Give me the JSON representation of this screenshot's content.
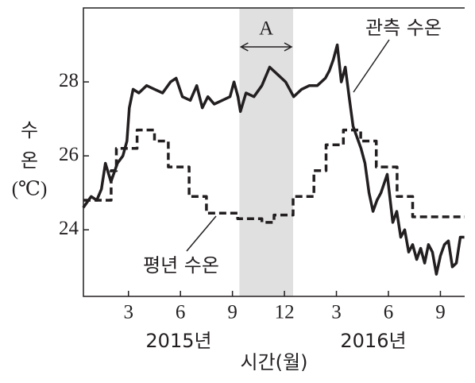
{
  "chart_data": {
    "type": "line",
    "xlabel": "시간(월)",
    "ylabel_lines": [
      "수",
      "온",
      "(℃)"
    ],
    "year_labels": [
      "2015년",
      "2016년"
    ],
    "highlight": {
      "label": "A",
      "x": [
        9.4,
        12.5
      ],
      "color": "#e0e0e0"
    },
    "xlim": [
      0.4,
      22.4
    ],
    "xticks": [
      3,
      6,
      9,
      12,
      {
        "value": 15,
        "label": "3"
      },
      {
        "value": 18,
        "label": "6"
      },
      {
        "value": 21,
        "label": "9"
      }
    ],
    "ylim": [
      22.2,
      30
    ],
    "yticks": [
      24,
      26,
      28
    ],
    "series": [
      {
        "name": "관측 수온",
        "color": "#231f20",
        "linestyle": "solid",
        "x": [
          0.39,
          0.85,
          1.17,
          1.44,
          1.67,
          1.99,
          2.36,
          2.68,
          2.91,
          3.05,
          3.27,
          3.6,
          4.05,
          4.51,
          4.97,
          5.43,
          5.75,
          6.11,
          6.57,
          6.94,
          7.26,
          7.58,
          7.95,
          8.41,
          8.86,
          9.09,
          9.32,
          9.46,
          9.78,
          10.24,
          10.7,
          11.15,
          11.61,
          12.07,
          12.53,
          12.99,
          13.44,
          13.9,
          14.36,
          14.59,
          14.82,
          15.05,
          15.28,
          15.51,
          15.73,
          15.96,
          16.19,
          16.42,
          16.65,
          16.88,
          17.11,
          17.34,
          17.57,
          17.93,
          18.25,
          18.48,
          18.71,
          18.94,
          19.17,
          19.4,
          19.63,
          19.86,
          20.09,
          20.31,
          20.54,
          20.77,
          21.0,
          21.23,
          21.46,
          21.69,
          21.92,
          22.15,
          22.38
        ],
        "values": [
          24.6,
          24.9,
          24.8,
          25.1,
          25.8,
          25.3,
          25.8,
          26.0,
          26.4,
          27.3,
          27.8,
          27.7,
          27.9,
          27.8,
          27.7,
          28.0,
          28.1,
          27.6,
          27.5,
          27.9,
          27.3,
          27.6,
          27.4,
          27.5,
          27.6,
          28.0,
          27.6,
          27.2,
          27.7,
          27.6,
          27.9,
          28.4,
          28.2,
          28.0,
          27.6,
          27.8,
          27.9,
          27.9,
          28.1,
          28.3,
          28.6,
          29.0,
          28.0,
          28.4,
          27.6,
          26.8,
          26.5,
          26.2,
          25.8,
          25.0,
          24.5,
          24.8,
          25.0,
          25.5,
          24.2,
          24.5,
          23.8,
          24.0,
          23.4,
          23.6,
          23.2,
          23.5,
          23.1,
          23.6,
          23.4,
          22.8,
          23.3,
          23.6,
          23.7,
          23.0,
          23.1,
          23.8,
          23.8
        ]
      },
      {
        "name": "평년 수온",
        "color": "#231f20",
        "linestyle": "dashed",
        "x": [
          0.4,
          2.0,
          2.0,
          2.3,
          2.3,
          3.5,
          3.5,
          4.5,
          4.5,
          5.3,
          5.3,
          6.5,
          6.5,
          7.5,
          7.5,
          9.3,
          9.3,
          10.7,
          10.7,
          11.4,
          11.4,
          12.5,
          12.5,
          13.7,
          13.7,
          14.4,
          14.4,
          15.4,
          15.4,
          16.4,
          16.4,
          17.3,
          17.3,
          18.5,
          18.5,
          19.4,
          19.4,
          22.4
        ],
        "values": [
          24.8,
          24.8,
          25.6,
          25.6,
          26.2,
          26.2,
          26.7,
          26.7,
          26.4,
          26.4,
          25.7,
          25.7,
          24.9,
          24.9,
          24.45,
          24.45,
          24.3,
          24.3,
          24.2,
          24.2,
          24.4,
          24.4,
          24.9,
          24.9,
          25.6,
          25.6,
          26.3,
          26.3,
          26.7,
          26.7,
          26.4,
          26.4,
          25.7,
          25.7,
          24.9,
          24.9,
          24.35,
          24.35
        ]
      }
    ]
  }
}
